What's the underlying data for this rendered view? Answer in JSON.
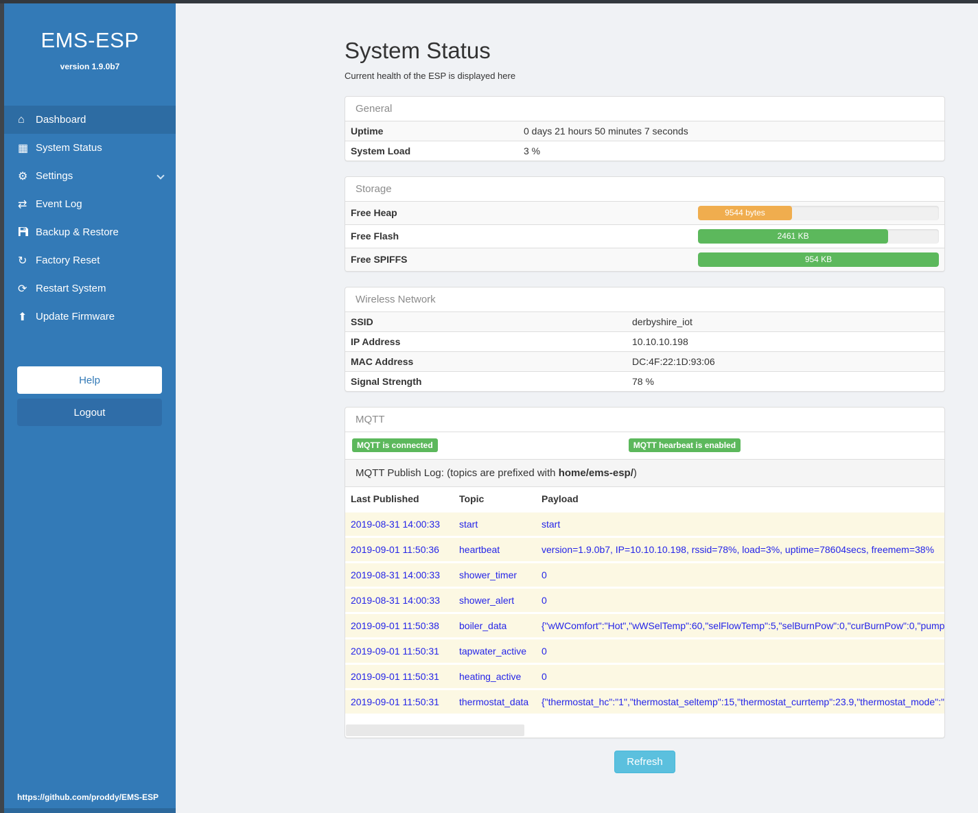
{
  "app": {
    "title": "EMS-ESP",
    "version": "version 1.9.0b7",
    "footer_url": "https://github.com/proddy/EMS-ESP"
  },
  "sidebar": {
    "items": [
      {
        "label": "Dashboard",
        "icon": "home-icon",
        "glyph": "⌂"
      },
      {
        "label": "System Status",
        "icon": "system-status-icon",
        "glyph": "▦"
      },
      {
        "label": "Settings",
        "icon": "gear-icon",
        "glyph": "⚙"
      },
      {
        "label": "Event Log",
        "icon": "transfer-arrows-icon",
        "glyph": "⇄"
      },
      {
        "label": "Backup & Restore",
        "icon": "floppy-icon",
        "glyph": ""
      },
      {
        "label": "Factory Reset",
        "icon": "reset-arrow-icon",
        "glyph": "↻"
      },
      {
        "label": "Restart System",
        "icon": "restart-icon",
        "glyph": "⟳"
      },
      {
        "label": "Update Firmware",
        "icon": "upload-icon",
        "glyph": "⬆"
      }
    ],
    "help_label": "Help",
    "logout_label": "Logout"
  },
  "page": {
    "title": "System Status",
    "subtitle": "Current health of the ESP is displayed here",
    "refresh_label": "Refresh"
  },
  "panels": {
    "general": {
      "heading": "General",
      "rows": [
        {
          "label": "Uptime",
          "value": "0 days 21 hours 50 minutes 7 seconds"
        },
        {
          "label": "System Load",
          "value": "3 %"
        }
      ]
    },
    "storage": {
      "heading": "Storage",
      "rows": [
        {
          "label": "Free Heap",
          "bar_label": "9544 bytes",
          "percent": 39,
          "color": "#f0ad4e"
        },
        {
          "label": "Free Flash",
          "bar_label": "2461 KB",
          "percent": 79,
          "color": "#5cb85c"
        },
        {
          "label": "Free SPIFFS",
          "bar_label": "954 KB",
          "percent": 100,
          "color": "#5cb85c"
        }
      ]
    },
    "wireless": {
      "heading": "Wireless Network",
      "rows": [
        {
          "label": "SSID",
          "value": "derbyshire_iot"
        },
        {
          "label": "IP Address",
          "value": "10.10.10.198"
        },
        {
          "label": "MAC Address",
          "value": "DC:4F:22:1D:93:06"
        },
        {
          "label": "Signal Strength",
          "value": "78 %"
        }
      ]
    },
    "mqtt": {
      "heading": "MQTT",
      "badges": [
        "MQTT is connected",
        "MQTT hearbeat is enabled"
      ],
      "log_title_prefix": "MQTT Publish Log: (topics are prefixed with ",
      "log_title_bold": "home/ems-esp/",
      "log_title_suffix": ")",
      "columns": [
        "Last Published",
        "Topic",
        "Payload"
      ],
      "rows": [
        {
          "time": "2019-08-31 14:00:33",
          "topic": "start",
          "payload": "start"
        },
        {
          "time": "2019-09-01 11:50:36",
          "topic": "heartbeat",
          "payload": "version=1.9.0b7, IP=10.10.10.198, rssid=78%, load=3%, uptime=78604secs, freemem=38%"
        },
        {
          "time": "2019-08-31 14:00:33",
          "topic": "shower_timer",
          "payload": "0"
        },
        {
          "time": "2019-08-31 14:00:33",
          "topic": "shower_alert",
          "payload": "0"
        },
        {
          "time": "2019-09-01 11:50:38",
          "topic": "boiler_data",
          "payload": "{\"wWComfort\":\"Hot\",\"wWSelTemp\":60,\"selFlowTemp\":5,\"selBurnPow\":0,\"curBurnPow\":0,\"pump"
        },
        {
          "time": "2019-09-01 11:50:31",
          "topic": "tapwater_active",
          "payload": "0"
        },
        {
          "time": "2019-09-01 11:50:31",
          "topic": "heating_active",
          "payload": "0"
        },
        {
          "time": "2019-09-01 11:50:31",
          "topic": "thermostat_data",
          "payload": "{\"thermostat_hc\":\"1\",\"thermostat_seltemp\":15,\"thermostat_currtemp\":23.9,\"thermostat_mode\":\""
        }
      ]
    }
  }
}
